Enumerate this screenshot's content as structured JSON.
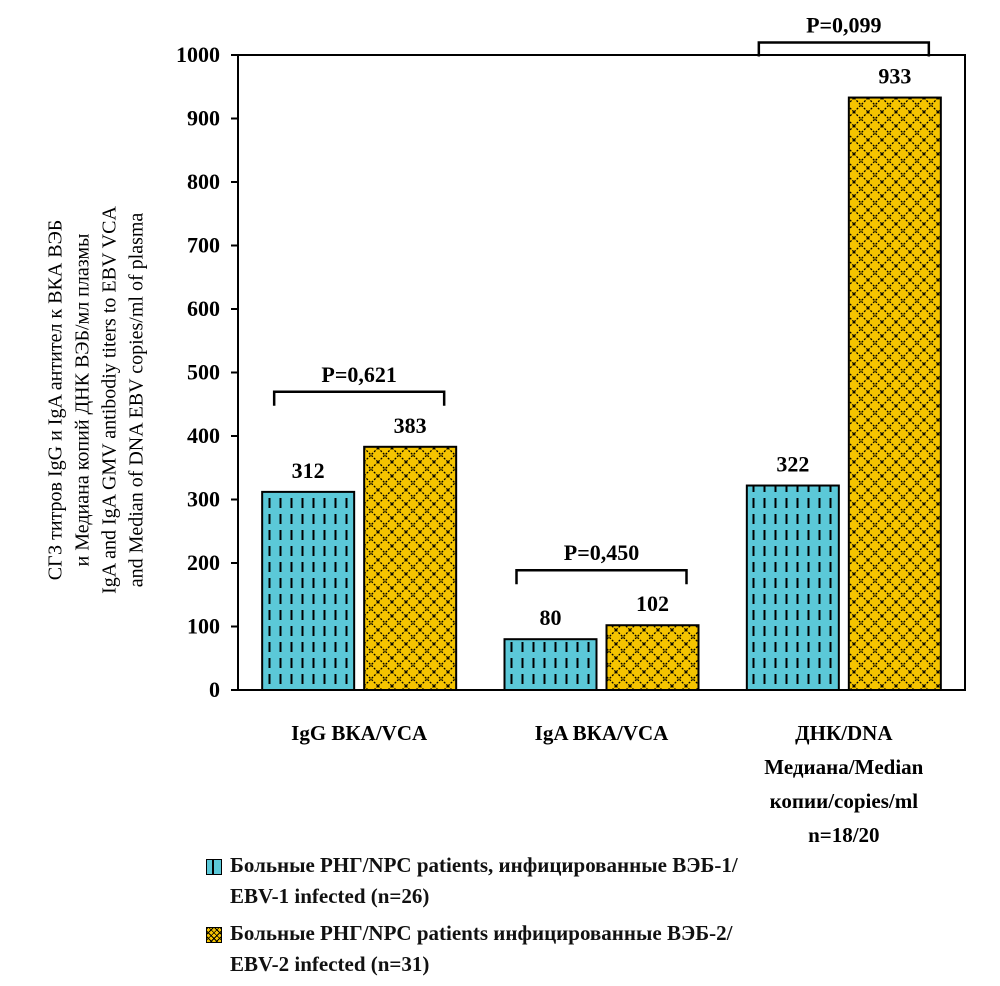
{
  "chart_data": {
    "type": "bar",
    "title": "",
    "ylabel_lines": [
      "СГЗ титров IgG и IgA антител к ВКА ВЭБ",
      "и Медиана копий ДНК ВЭБ/мл плазмы",
      "IgA and IgA GMV antibodiy titers  to EBV VCA",
      "and Median of DNA EBV copies/ml of plasma"
    ],
    "xlabel": "",
    "ylim": [
      0,
      1000
    ],
    "yticks": [
      "0",
      "100",
      "200",
      "300",
      "400",
      "500",
      "600",
      "700",
      "800",
      "900",
      "1000"
    ],
    "categories": [
      [
        "IgG ВКА/VCA"
      ],
      [
        "IgA ВКА/VCA"
      ],
      [
        "ДНК/DNA",
        "Медиана/Median",
        "копии/copies/ml",
        "n=18/20"
      ]
    ],
    "series": [
      {
        "name": "Больные РНГ/NPC patients, инфицированные ВЭБ-1/\nEBV-1 infected (n=26)",
        "color": "#5bc8d8",
        "pattern": "dashed-vertical",
        "values": [
          312,
          80,
          322
        ],
        "value_labels": [
          "312",
          "80",
          "322"
        ]
      },
      {
        "name": "Больные РНГ/NPC patients инфицированные ВЭБ-2/\nEBV-2 infected (n=31)",
        "color": "#f5c400",
        "pattern": "crosshatch",
        "values": [
          383,
          102,
          933
        ],
        "value_labels": [
          "383",
          "102",
          "933"
        ]
      }
    ],
    "p_values": [
      "P=0,621",
      "P=0,450",
      "P=0,099"
    ],
    "legend_position": "bottom"
  }
}
